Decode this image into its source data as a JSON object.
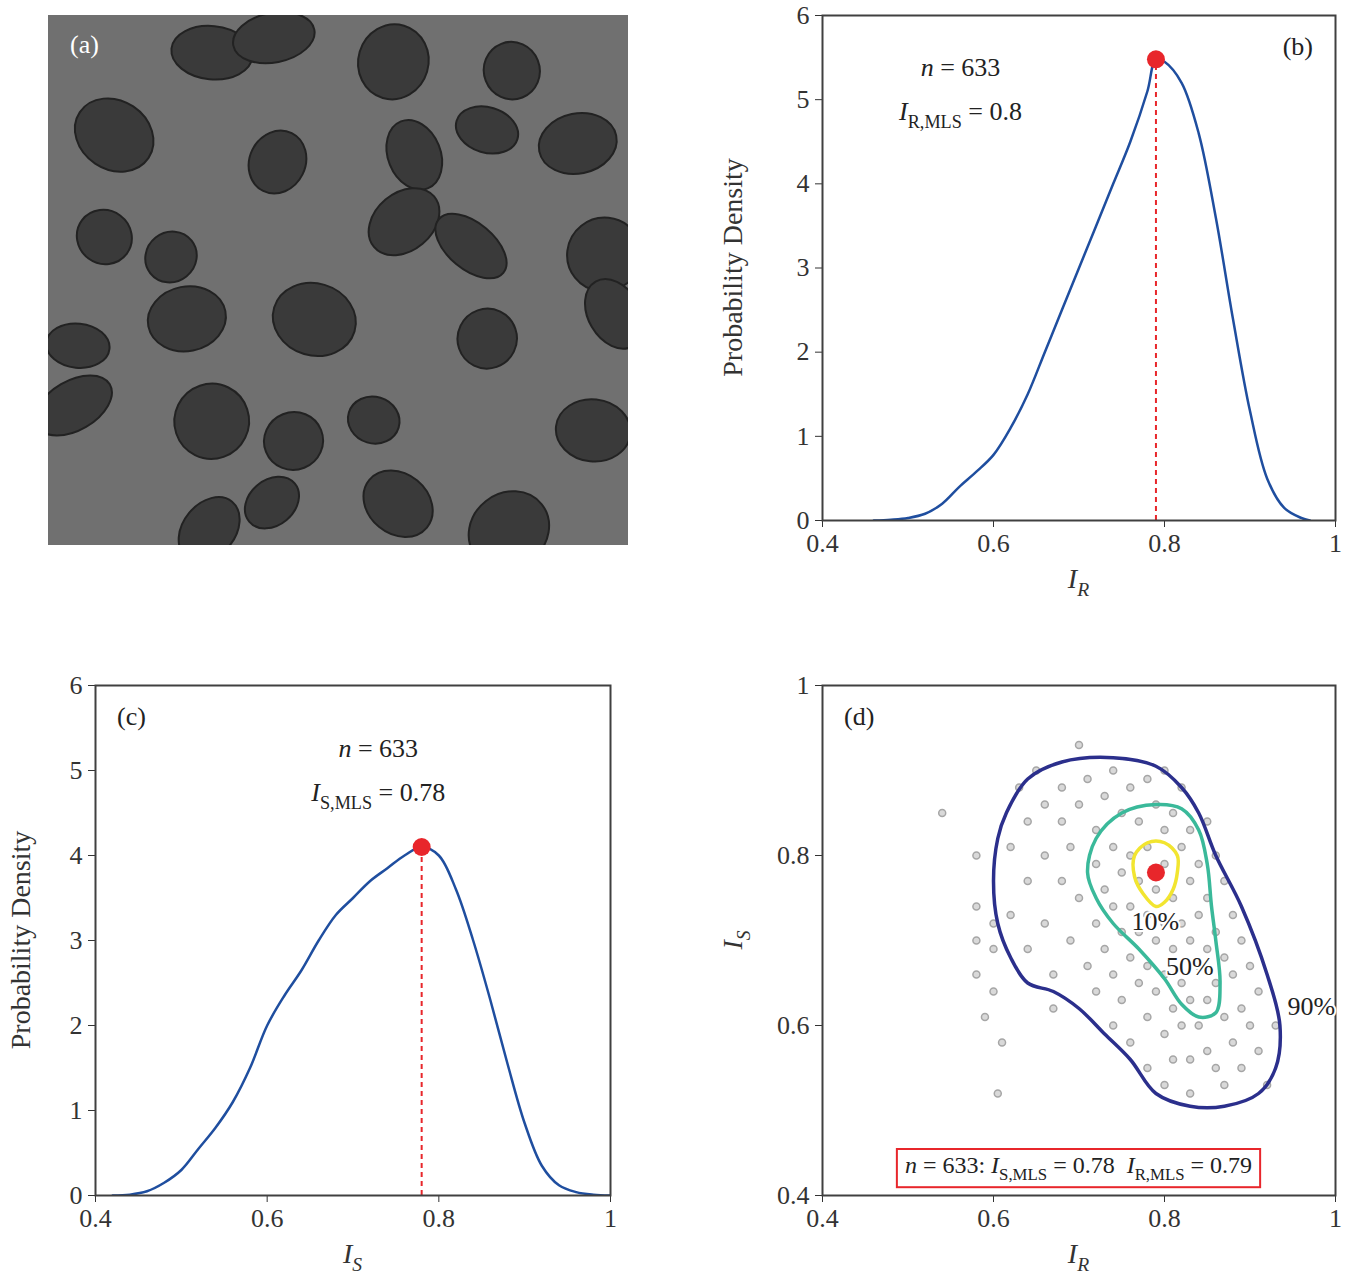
{
  "chart_data": [
    {
      "type": "image",
      "label": "(a)"
    },
    {
      "type": "line",
      "label": "(b)",
      "color": "#1f4e9f",
      "x": [
        0.46,
        0.48,
        0.5,
        0.52,
        0.54,
        0.56,
        0.58,
        0.6,
        0.62,
        0.64,
        0.66,
        0.68,
        0.7,
        0.72,
        0.74,
        0.76,
        0.78,
        0.79,
        0.8,
        0.82,
        0.84,
        0.86,
        0.88,
        0.9,
        0.92,
        0.94,
        0.96,
        0.97
      ],
      "y": [
        0,
        0.01,
        0.03,
        0.08,
        0.2,
        0.4,
        0.58,
        0.78,
        1.1,
        1.5,
        2.0,
        2.5,
        3.0,
        3.5,
        4.0,
        4.5,
        5.1,
        5.48,
        5.45,
        5.2,
        4.6,
        3.6,
        2.4,
        1.3,
        0.5,
        0.15,
        0.03,
        0
      ],
      "peak": {
        "x": 0.79,
        "y": 5.48,
        "color": "#e8262b"
      },
      "xlim": [
        0.4,
        1
      ],
      "xticks": [
        0.4,
        0.6,
        0.8,
        1
      ],
      "ylim": [
        0,
        6
      ],
      "yticks": [
        0,
        1,
        2,
        3,
        4,
        5,
        6
      ],
      "xlabel": [
        {
          "text": "I"
        },
        {
          "text": "R",
          "sub": true
        }
      ],
      "ylabel": [
        {
          "text": "Probability Density"
        }
      ],
      "annotations": [
        [
          {
            "text": "n"
          },
          {
            "text": " = 633"
          }
        ],
        [
          {
            "text": "I"
          },
          {
            "text": "R,MLS",
            "sub": true
          },
          {
            "text": " = 0.8"
          }
        ]
      ]
    },
    {
      "type": "line",
      "label": "(c)",
      "color": "#1f4e9f",
      "x": [
        0.42,
        0.44,
        0.46,
        0.48,
        0.5,
        0.52,
        0.54,
        0.56,
        0.58,
        0.6,
        0.62,
        0.64,
        0.66,
        0.68,
        0.7,
        0.72,
        0.74,
        0.76,
        0.78,
        0.8,
        0.82,
        0.84,
        0.86,
        0.88,
        0.9,
        0.92,
        0.94,
        0.96,
        0.98,
        1
      ],
      "y": [
        0,
        0.01,
        0.05,
        0.15,
        0.3,
        0.55,
        0.8,
        1.1,
        1.5,
        2.0,
        2.35,
        2.65,
        3.0,
        3.3,
        3.5,
        3.7,
        3.85,
        4.0,
        4.1,
        4.0,
        3.6,
        3.0,
        2.3,
        1.55,
        0.85,
        0.35,
        0.12,
        0.04,
        0.01,
        0
      ],
      "peak": {
        "x": 0.78,
        "y": 4.1,
        "color": "#e8262b"
      },
      "xlim": [
        0.4,
        1
      ],
      "xticks": [
        0.4,
        0.6,
        0.8,
        1
      ],
      "ylim": [
        0,
        6
      ],
      "yticks": [
        0,
        1,
        2,
        3,
        4,
        5,
        6
      ],
      "xlabel": [
        {
          "text": "I"
        },
        {
          "text": "S",
          "sub": true
        }
      ],
      "ylabel": [
        {
          "text": "Probability Density"
        }
      ],
      "annotations": [
        [
          {
            "text": "n"
          },
          {
            "text": " = 633"
          }
        ],
        [
          {
            "text": "I"
          },
          {
            "text": "S,MLS",
            "sub": true
          },
          {
            "text": " = 0.78"
          }
        ]
      ]
    },
    {
      "type": "scatter",
      "label": "(d)",
      "color": "#a6a6a6",
      "points": [
        [
          0.54,
          0.85
        ],
        [
          0.58,
          0.8
        ],
        [
          0.58,
          0.74
        ],
        [
          0.58,
          0.7
        ],
        [
          0.58,
          0.66
        ],
        [
          0.59,
          0.61
        ],
        [
          0.6,
          0.64
        ],
        [
          0.61,
          0.58
        ],
        [
          0.605,
          0.52
        ],
        [
          0.62,
          0.73
        ],
        [
          0.62,
          0.81
        ],
        [
          0.63,
          0.88
        ],
        [
          0.64,
          0.77
        ],
        [
          0.64,
          0.69
        ],
        [
          0.64,
          0.84
        ],
        [
          0.65,
          0.9
        ],
        [
          0.66,
          0.86
        ],
        [
          0.66,
          0.8
        ],
        [
          0.66,
          0.72
        ],
        [
          0.67,
          0.66
        ],
        [
          0.67,
          0.62
        ],
        [
          0.68,
          0.88
        ],
        [
          0.68,
          0.84
        ],
        [
          0.68,
          0.77
        ],
        [
          0.69,
          0.7
        ],
        [
          0.69,
          0.81
        ],
        [
          0.7,
          0.86
        ],
        [
          0.7,
          0.93
        ],
        [
          0.7,
          0.75
        ],
        [
          0.71,
          0.67
        ],
        [
          0.71,
          0.89
        ],
        [
          0.72,
          0.83
        ],
        [
          0.72,
          0.79
        ],
        [
          0.72,
          0.72
        ],
        [
          0.72,
          0.64
        ],
        [
          0.73,
          0.87
        ],
        [
          0.73,
          0.76
        ],
        [
          0.73,
          0.69
        ],
        [
          0.74,
          0.9
        ],
        [
          0.74,
          0.81
        ],
        [
          0.74,
          0.74
        ],
        [
          0.74,
          0.66
        ],
        [
          0.74,
          0.6
        ],
        [
          0.75,
          0.85
        ],
        [
          0.75,
          0.78
        ],
        [
          0.75,
          0.71
        ],
        [
          0.75,
          0.63
        ],
        [
          0.76,
          0.88
        ],
        [
          0.76,
          0.8
        ],
        [
          0.76,
          0.74
        ],
        [
          0.76,
          0.68
        ],
        [
          0.76,
          0.58
        ],
        [
          0.77,
          0.84
        ],
        [
          0.77,
          0.77
        ],
        [
          0.77,
          0.71
        ],
        [
          0.77,
          0.65
        ],
        [
          0.78,
          0.89
        ],
        [
          0.78,
          0.81
        ],
        [
          0.78,
          0.73
        ],
        [
          0.78,
          0.67
        ],
        [
          0.78,
          0.61
        ],
        [
          0.78,
          0.55
        ],
        [
          0.79,
          0.86
        ],
        [
          0.79,
          0.76
        ],
        [
          0.79,
          0.7
        ],
        [
          0.79,
          0.64
        ],
        [
          0.8,
          0.9
        ],
        [
          0.8,
          0.83
        ],
        [
          0.8,
          0.79
        ],
        [
          0.8,
          0.72
        ],
        [
          0.8,
          0.66
        ],
        [
          0.8,
          0.59
        ],
        [
          0.8,
          0.53
        ],
        [
          0.81,
          0.85
        ],
        [
          0.81,
          0.75
        ],
        [
          0.81,
          0.69
        ],
        [
          0.81,
          0.62
        ],
        [
          0.81,
          0.56
        ],
        [
          0.82,
          0.88
        ],
        [
          0.82,
          0.81
        ],
        [
          0.82,
          0.72
        ],
        [
          0.82,
          0.65
        ],
        [
          0.82,
          0.6
        ],
        [
          0.83,
          0.83
        ],
        [
          0.83,
          0.77
        ],
        [
          0.83,
          0.7
        ],
        [
          0.83,
          0.63
        ],
        [
          0.83,
          0.56
        ],
        [
          0.83,
          0.52
        ],
        [
          0.84,
          0.79
        ],
        [
          0.84,
          0.73
        ],
        [
          0.84,
          0.67
        ],
        [
          0.84,
          0.6
        ],
        [
          0.85,
          0.84
        ],
        [
          0.85,
          0.75
        ],
        [
          0.85,
          0.69
        ],
        [
          0.85,
          0.63
        ],
        [
          0.85,
          0.57
        ],
        [
          0.86,
          0.8
        ],
        [
          0.86,
          0.71
        ],
        [
          0.86,
          0.65
        ],
        [
          0.86,
          0.55
        ],
        [
          0.87,
          0.77
        ],
        [
          0.87,
          0.68
        ],
        [
          0.87,
          0.61
        ],
        [
          0.87,
          0.53
        ],
        [
          0.88,
          0.73
        ],
        [
          0.88,
          0.66
        ],
        [
          0.88,
          0.58
        ],
        [
          0.89,
          0.7
        ],
        [
          0.89,
          0.62
        ],
        [
          0.89,
          0.55
        ],
        [
          0.9,
          0.67
        ],
        [
          0.9,
          0.6
        ],
        [
          0.91,
          0.64
        ],
        [
          0.91,
          0.57
        ],
        [
          0.92,
          0.53
        ],
        [
          0.93,
          0.6
        ],
        [
          0.6,
          0.69
        ],
        [
          0.6,
          0.72
        ]
      ],
      "contours": [
        {
          "name": "90%",
          "color": "#2b2f8c",
          "x": [
            0.615,
            0.64,
            0.68,
            0.74,
            0.79,
            0.82,
            0.84,
            0.86,
            0.89,
            0.92,
            0.935,
            0.93,
            0.91,
            0.87,
            0.83,
            0.79,
            0.76,
            0.73,
            0.7,
            0.67,
            0.64,
            0.62,
            0.605,
            0.6,
            0.605
          ],
          "y": [
            0.85,
            0.89,
            0.91,
            0.915,
            0.905,
            0.88,
            0.85,
            0.8,
            0.74,
            0.66,
            0.6,
            0.55,
            0.52,
            0.505,
            0.505,
            0.52,
            0.56,
            0.59,
            0.62,
            0.64,
            0.65,
            0.68,
            0.72,
            0.77,
            0.82
          ]
        },
        {
          "name": "50%",
          "color": "#3ab99a",
          "x": [
            0.72,
            0.75,
            0.79,
            0.82,
            0.84,
            0.85,
            0.855,
            0.86,
            0.865,
            0.86,
            0.84,
            0.82,
            0.8,
            0.77,
            0.74,
            0.72,
            0.71
          ],
          "y": [
            0.82,
            0.85,
            0.86,
            0.855,
            0.83,
            0.79,
            0.74,
            0.7,
            0.65,
            0.615,
            0.61,
            0.625,
            0.655,
            0.69,
            0.72,
            0.75,
            0.78
          ]
        },
        {
          "name": "10%",
          "color": "#f2e530",
          "x": [
            0.765,
            0.78,
            0.8,
            0.815,
            0.815,
            0.81,
            0.8,
            0.79,
            0.775,
            0.765
          ],
          "y": [
            0.8,
            0.815,
            0.815,
            0.8,
            0.78,
            0.76,
            0.745,
            0.74,
            0.755,
            0.775
          ]
        }
      ],
      "peak": {
        "x": 0.79,
        "y": 0.78,
        "color": "#e8262b"
      },
      "xlim": [
        0.4,
        1
      ],
      "xticks": [
        0.4,
        0.6,
        0.8,
        1
      ],
      "ylim": [
        0.4,
        1
      ],
      "yticks": [
        0.4,
        0.6,
        0.8,
        1
      ],
      "xlabel": [
        {
          "text": "I"
        },
        {
          "text": "R",
          "sub": true
        }
      ],
      "ylabel": [
        {
          "text": "I"
        },
        {
          "text": "S",
          "sub": true
        }
      ],
      "caption": [
        {
          "text": "n"
        },
        {
          "text": " = 633: "
        },
        {
          "text": "I"
        },
        {
          "text": "S,MLS",
          "sub": true
        },
        {
          "text": " = 0.78  "
        },
        {
          "text": "I"
        },
        {
          "text": "R,MLS",
          "sub": true
        },
        {
          "text": " = 0.79"
        }
      ]
    }
  ]
}
